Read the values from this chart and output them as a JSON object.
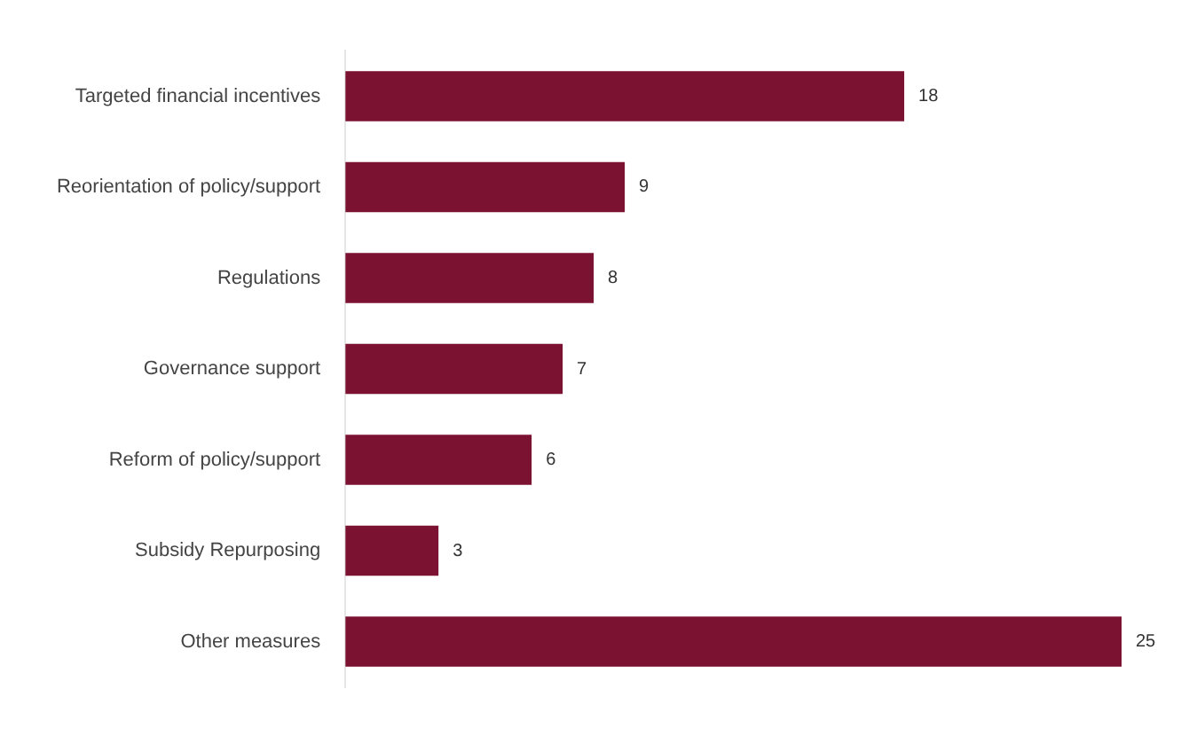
{
  "chart_data": {
    "type": "bar",
    "orientation": "horizontal",
    "categories": [
      "Targeted financial incentives",
      "Reorientation of policy/support",
      "Regulations",
      "Governance support",
      "Reform of policy/support",
      "Subsidy Repurposing",
      "Other measures"
    ],
    "values": [
      18,
      9,
      8,
      7,
      6,
      3,
      25
    ],
    "color": "#7b1232",
    "data_labels": true,
    "legend": false
  }
}
